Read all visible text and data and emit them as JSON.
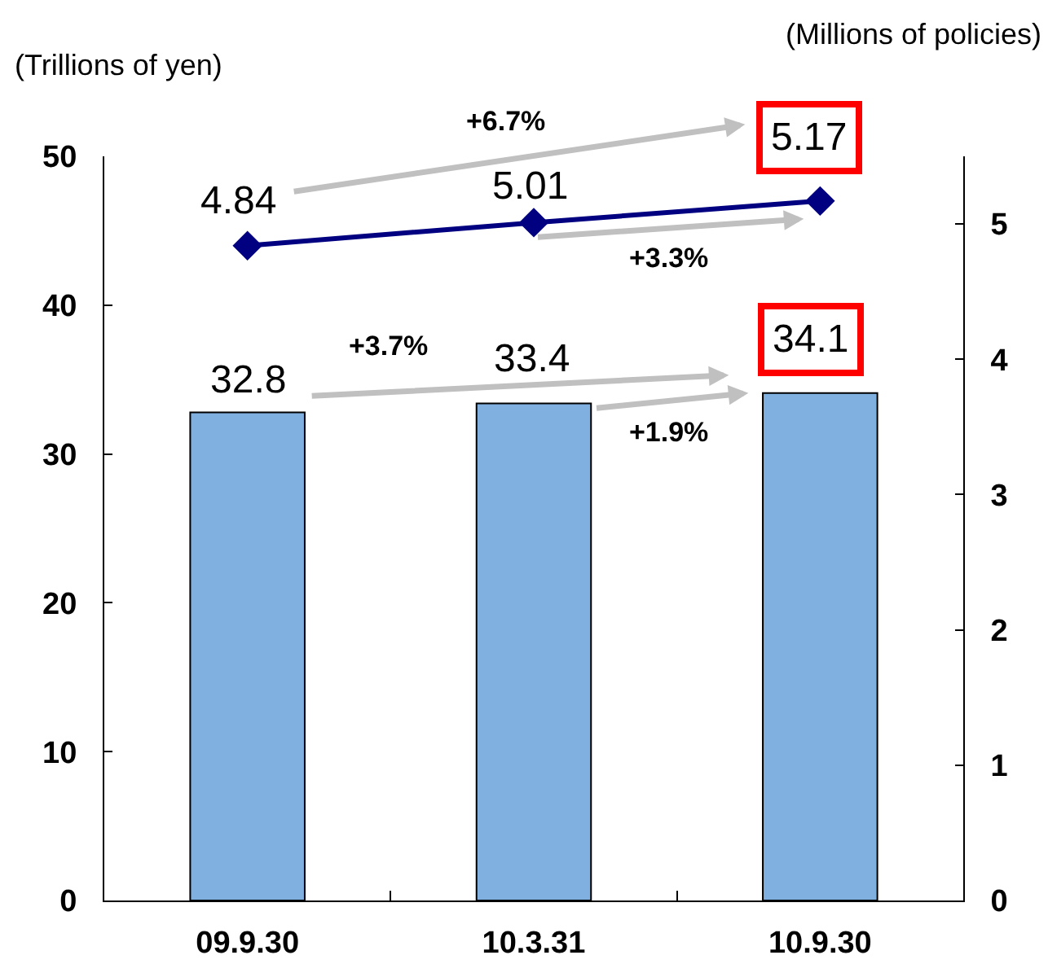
{
  "chart_data": {
    "type": "bar",
    "ylabel": "(Trillions of yen)",
    "y2label": "(Millions of policies)",
    "categories": [
      "09.9.30",
      "10.3.31",
      "10.9.30"
    ],
    "series": [
      {
        "color": "#80b0e0",
        "values": [
          32.8,
          33.4,
          34.1
        ]
      },
      {
        "type": "line",
        "axis": "y2",
        "color": "#000080",
        "values": [
          4.84,
          5.01,
          5.17
        ]
      }
    ],
    "ylim": [
      0,
      50
    ],
    "yticks": [
      0,
      10,
      20,
      30,
      40,
      50
    ],
    "y2lim": [
      0,
      5.5
    ],
    "y2ticks": [
      0,
      1,
      2,
      3,
      4,
      5
    ],
    "data_labels": true,
    "marker": "diamond",
    "annotations": [
      "+6.7%",
      "+3.3%",
      "+3.7%",
      "+1.9%"
    ]
  }
}
